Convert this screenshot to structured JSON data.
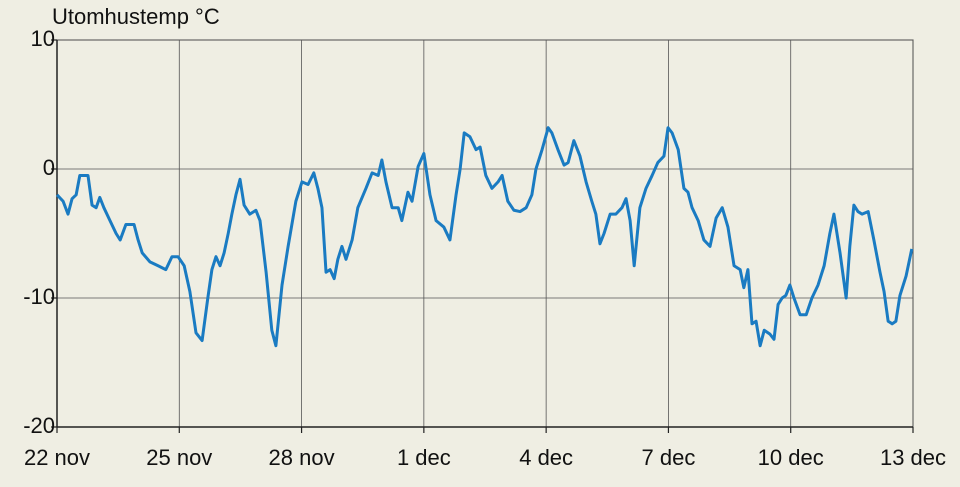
{
  "chart_data": {
    "type": "line",
    "title": "Utomhustemp °C",
    "x": [
      0,
      0.15,
      0.27,
      0.37,
      0.47,
      0.56,
      0.76,
      0.86,
      0.96,
      1.05,
      1.15,
      1.3,
      1.45,
      1.55,
      1.69,
      1.89,
      1.99,
      2.09,
      2.28,
      2.48,
      2.67,
      2.82,
      2.97,
      3.12,
      3.26,
      3.41,
      3.56,
      3.7,
      3.8,
      3.9,
      4.0,
      4.1,
      4.2,
      4.29,
      4.39,
      4.49,
      4.59,
      4.73,
      4.88,
      4.98,
      5.13,
      5.27,
      5.37,
      5.52,
      5.67,
      5.86,
      6.01,
      6.16,
      6.3,
      6.4,
      6.5,
      6.6,
      6.7,
      6.8,
      6.89,
      6.99,
      7.09,
      7.24,
      7.38,
      7.58,
      7.73,
      7.88,
      7.97,
      8.07,
      8.22,
      8.37,
      8.46,
      8.61,
      8.71,
      8.86,
      9.0,
      9.15,
      9.3,
      9.49,
      9.64,
      9.79,
      9.89,
      9.99,
      10.13,
      10.28,
      10.38,
      10.52,
      10.67,
      10.82,
      10.92,
      11.06,
      11.21,
      11.36,
      11.51,
      11.65,
      11.75,
      11.9,
      12.05,
      12.14,
      12.29,
      12.44,
      12.54,
      12.68,
      12.83,
      12.98,
      13.12,
      13.22,
      13.32,
      13.42,
      13.57,
      13.71,
      13.86,
      13.96,
      14.06,
      14.16,
      14.3,
      14.45,
      14.6,
      14.74,
      14.89,
      14.99,
      15.09,
      15.24,
      15.38,
      15.48,
      15.58,
      15.73,
      15.87,
      16.02,
      16.17,
      16.32,
      16.46,
      16.61,
      16.76,
      16.85,
      16.95,
      17.05,
      17.15,
      17.25,
      17.35,
      17.49,
      17.59,
      17.69,
      17.79,
      17.88,
      17.98,
      18.08,
      18.23,
      18.38,
      18.52,
      18.67,
      18.82,
      18.96,
      19.06,
      19.21,
      19.36,
      19.45,
      19.55,
      19.65,
      19.75,
      19.9,
      20.04,
      20.19,
      20.29,
      20.39,
      20.49,
      20.58,
      20.68,
      20.83,
      20.97
    ],
    "series": [
      {
        "color": "#1a7bc2",
        "values": [
          -2.0,
          -2.5,
          -3.5,
          -2.3,
          -2.0,
          -0.5,
          -0.5,
          -2.8,
          -3.0,
          -2.2,
          -3.0,
          -4.0,
          -5.0,
          -5.5,
          -4.3,
          -4.3,
          -5.5,
          -6.5,
          -7.2,
          -7.5,
          -7.8,
          -6.8,
          -6.8,
          -7.5,
          -9.5,
          -12.7,
          -13.3,
          -10.0,
          -7.8,
          -6.8,
          -7.5,
          -6.5,
          -5.0,
          -3.5,
          -2.0,
          -0.8,
          -2.8,
          -3.5,
          -3.2,
          -4.0,
          -8.0,
          -12.5,
          -13.7,
          -9.0,
          -6.0,
          -2.5,
          -1.0,
          -1.2,
          -0.3,
          -1.5,
          -3.0,
          -8.0,
          -7.8,
          -8.5,
          -7.0,
          -6.0,
          -7.0,
          -5.5,
          -3.0,
          -1.5,
          -0.3,
          -0.5,
          0.7,
          -1.0,
          -3.0,
          -3.0,
          -4.0,
          -1.8,
          -2.5,
          0.2,
          1.2,
          -2.0,
          -4.0,
          -4.5,
          -5.5,
          -2.0,
          0.0,
          2.8,
          2.5,
          1.5,
          1.7,
          -0.5,
          -1.5,
          -1.0,
          -0.5,
          -2.5,
          -3.2,
          -3.3,
          -3.0,
          -2.0,
          0.0,
          1.5,
          3.2,
          2.8,
          1.5,
          0.3,
          0.5,
          2.2,
          1.0,
          -1.0,
          -2.5,
          -3.5,
          -5.8,
          -5.0,
          -3.5,
          -3.5,
          -3.0,
          -2.3,
          -4.0,
          -7.5,
          -3.0,
          -1.5,
          -0.5,
          0.5,
          1.0,
          3.2,
          2.8,
          1.5,
          -1.5,
          -1.8,
          -3.0,
          -4.0,
          -5.5,
          -6.0,
          -3.8,
          -3.0,
          -4.5,
          -7.5,
          -7.8,
          -9.2,
          -7.8,
          -12.0,
          -11.8,
          -13.7,
          -12.5,
          -12.8,
          -13.2,
          -10.5,
          -10.0,
          -9.8,
          -9.0,
          -10.0,
          -11.3,
          -11.3,
          -10.0,
          -9.0,
          -7.5,
          -5.0,
          -3.5,
          -6.5,
          -10.0,
          -6.0,
          -2.8,
          -3.3,
          -3.5,
          -3.3,
          -5.5,
          -8.0,
          -9.5,
          -11.8,
          -12.0,
          -11.8,
          -9.8,
          -8.3,
          -6.2
        ]
      }
    ],
    "xlim": [
      0,
      21
    ],
    "xticks": [
      {
        "value": 0,
        "label": "22 nov"
      },
      {
        "value": 3,
        "label": "25 nov"
      },
      {
        "value": 6,
        "label": "28 nov"
      },
      {
        "value": 9,
        "label": "1 dec"
      },
      {
        "value": 12,
        "label": "4 dec"
      },
      {
        "value": 15,
        "label": "7 dec"
      },
      {
        "value": 18,
        "label": "10 dec"
      },
      {
        "value": 21,
        "label": "13 dec"
      }
    ],
    "ylim": [
      -20,
      10
    ],
    "yticks": [
      -20,
      -10,
      0,
      10
    ],
    "grid": true
  }
}
